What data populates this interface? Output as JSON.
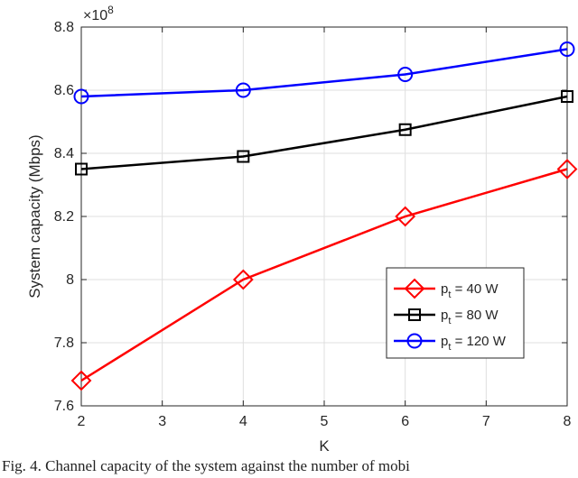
{
  "chart_data": {
    "type": "line",
    "xlabel": "K",
    "ylabel": "System capacity (Mbps)",
    "y_exponent_label": "×10",
    "y_exponent_power": "8",
    "xlim": [
      2,
      8
    ],
    "ylim": [
      7.6,
      8.8
    ],
    "xticks": [
      2,
      3,
      4,
      5,
      6,
      7,
      8
    ],
    "xtick_labels": [
      "2",
      "3",
      "4",
      "5",
      "6",
      "7",
      "8"
    ],
    "yticks": [
      7.6,
      7.8,
      8.0,
      8.2,
      8.4,
      8.6,
      8.8
    ],
    "ytick_labels": [
      "7.6",
      "7.8",
      "8",
      "8.2",
      "8.4",
      "8.6",
      "8.8"
    ],
    "grid": true,
    "legend_position": "lower-right",
    "x": [
      2,
      4,
      6,
      8
    ],
    "series": [
      {
        "name_main": "p",
        "name_sub": "t",
        "name_rest": " = 40 W",
        "marker": "diamond",
        "color": "#ff0000",
        "values": [
          7.68,
          8.0,
          8.2,
          8.35
        ]
      },
      {
        "name_main": "p",
        "name_sub": "t",
        "name_rest": " = 80 W",
        "marker": "square",
        "color": "#000000",
        "values": [
          8.35,
          8.39,
          8.475,
          8.58
        ]
      },
      {
        "name_main": "p",
        "name_sub": "t",
        "name_rest": " = 120 W",
        "marker": "circle",
        "color": "#0000ff",
        "values": [
          8.58,
          8.6,
          8.65,
          8.73
        ]
      }
    ]
  },
  "caption": "Fig. 4. Channel capacity of the system against the number of mobi"
}
